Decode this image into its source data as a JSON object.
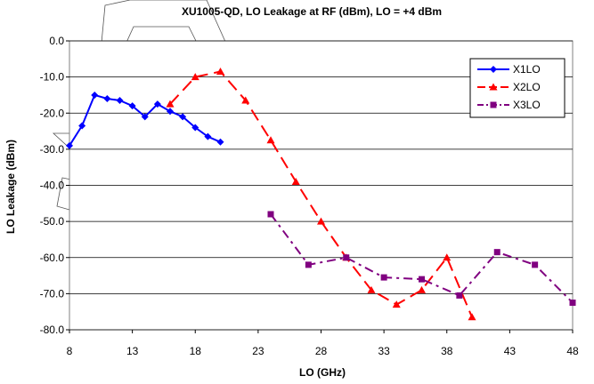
{
  "chart_data": {
    "type": "line",
    "title": "XU1005-QD, LO Leakage at RF (dBm), LO = +4 dBm",
    "xlabel": "LO (GHz)",
    "ylabel": "LO Leakage (dBm)",
    "xlim": [
      8,
      48
    ],
    "ylim": [
      -80,
      0
    ],
    "xticks": [
      "8",
      "13",
      "18",
      "23",
      "28",
      "33",
      "38",
      "43",
      "48"
    ],
    "yticks": [
      "0.0",
      "-10.0",
      "-20.0",
      "-30.0",
      "-40.0",
      "-50.0",
      "-60.0",
      "-70.0",
      "-80.0"
    ],
    "grid": "horizontal",
    "legend_position": "top-right",
    "series": [
      {
        "name": "X1LO",
        "color": "#0000FF",
        "dash": "solid",
        "marker": "diamond",
        "points": [
          [
            8,
            -29
          ],
          [
            9,
            -23.5
          ],
          [
            10,
            -15
          ],
          [
            11,
            -16
          ],
          [
            12,
            -16.5
          ],
          [
            13,
            -18
          ],
          [
            14,
            -21
          ],
          [
            15,
            -17.5
          ],
          [
            16,
            -19.5
          ],
          [
            17,
            -21
          ],
          [
            18,
            -24
          ],
          [
            19,
            -26.5
          ],
          [
            20,
            -28
          ]
        ]
      },
      {
        "name": "X2LO",
        "color": "#FF0000",
        "dash": "long-dash",
        "marker": "triangle",
        "points": [
          [
            16,
            -17.5
          ],
          [
            18,
            -10
          ],
          [
            20,
            -8.5
          ],
          [
            22,
            -16.5
          ],
          [
            24,
            -27.5
          ],
          [
            26,
            -39
          ],
          [
            28,
            -50
          ],
          [
            30,
            -60
          ],
          [
            32,
            -69
          ],
          [
            34,
            -73
          ],
          [
            36,
            -69
          ],
          [
            38,
            -60
          ],
          [
            40,
            -76.5
          ]
        ]
      },
      {
        "name": "X3LO",
        "color": "#800080",
        "dash": "dash-dot",
        "marker": "square",
        "points": [
          [
            24,
            -48
          ],
          [
            27,
            -62
          ],
          [
            30,
            -60
          ],
          [
            33,
            -65.5
          ],
          [
            36,
            -66
          ],
          [
            39,
            -70.5
          ],
          [
            42,
            -58.5
          ],
          [
            45,
            -62
          ],
          [
            48,
            -72.5
          ]
        ]
      }
    ]
  }
}
